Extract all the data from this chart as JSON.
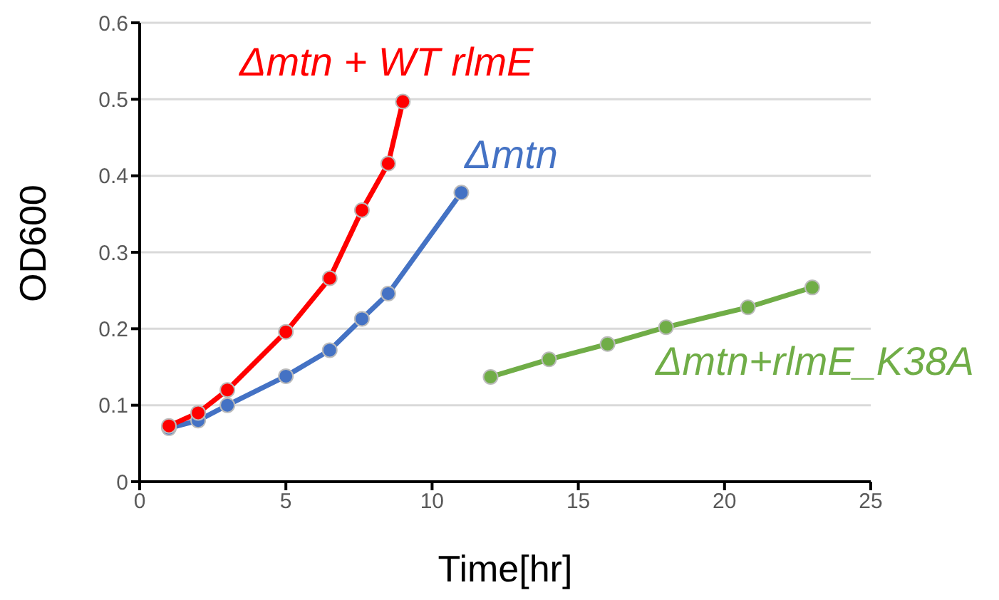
{
  "chart_data": {
    "type": "line",
    "xlabel": "Time[hr]",
    "ylabel": "OD600",
    "xlim": [
      0,
      25
    ],
    "xticks": [
      0,
      5,
      10,
      15,
      20,
      25
    ],
    "ylim": [
      0,
      0.6
    ],
    "yticks": [
      0,
      0.1,
      0.2,
      0.3,
      0.4,
      0.5,
      0.6
    ],
    "grid": "y",
    "marker": "circle",
    "line_style": "solid",
    "series": [
      {
        "name": "Δmtn + WT rlmE",
        "color": "#ff0000",
        "x": [
          1,
          2,
          3,
          5,
          6.5,
          7.6,
          8.5,
          9
        ],
        "values": [
          0.073,
          0.09,
          0.12,
          0.196,
          0.266,
          0.355,
          0.416,
          0.497
        ]
      },
      {
        "name": "Δmtn",
        "color": "#4472c4",
        "x": [
          1,
          2,
          3,
          5,
          6.5,
          7.6,
          8.5,
          11
        ],
        "values": [
          0.07,
          0.08,
          0.1,
          0.138,
          0.172,
          0.213,
          0.246,
          0.378
        ]
      },
      {
        "name": "Δmtn+rlmE_K38A",
        "color": "#70ad47",
        "x": [
          12,
          14,
          16,
          18,
          20.8,
          23
        ],
        "values": [
          0.137,
          0.16,
          0.18,
          0.202,
          0.228,
          0.254
        ]
      }
    ]
  }
}
